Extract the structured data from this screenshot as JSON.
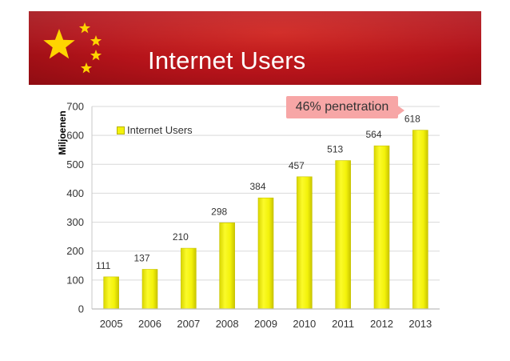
{
  "slide": {
    "title": "Internet Users",
    "callout": "46% penetration",
    "colors": {
      "banner": "#b4131a",
      "stars": "#ffd400",
      "bar": "#f3f20a",
      "callout": "#f7a6a6"
    }
  },
  "chart_data": {
    "type": "bar",
    "title": "",
    "categories": [
      "2005",
      "2006",
      "2007",
      "2008",
      "2009",
      "2010",
      "2011",
      "2012",
      "2013"
    ],
    "series": [
      {
        "name": "Internet Users",
        "values": [
          111,
          137,
          210,
          298,
          384,
          457,
          513,
          564,
          618
        ]
      }
    ],
    "xlabel": "",
    "ylabel": "Miljoenen",
    "ylim": [
      0,
      700
    ],
    "yticks": [
      0,
      100,
      200,
      300,
      400,
      500,
      600,
      700
    ],
    "grid": true,
    "legend": "top-left",
    "data_labels": true
  }
}
